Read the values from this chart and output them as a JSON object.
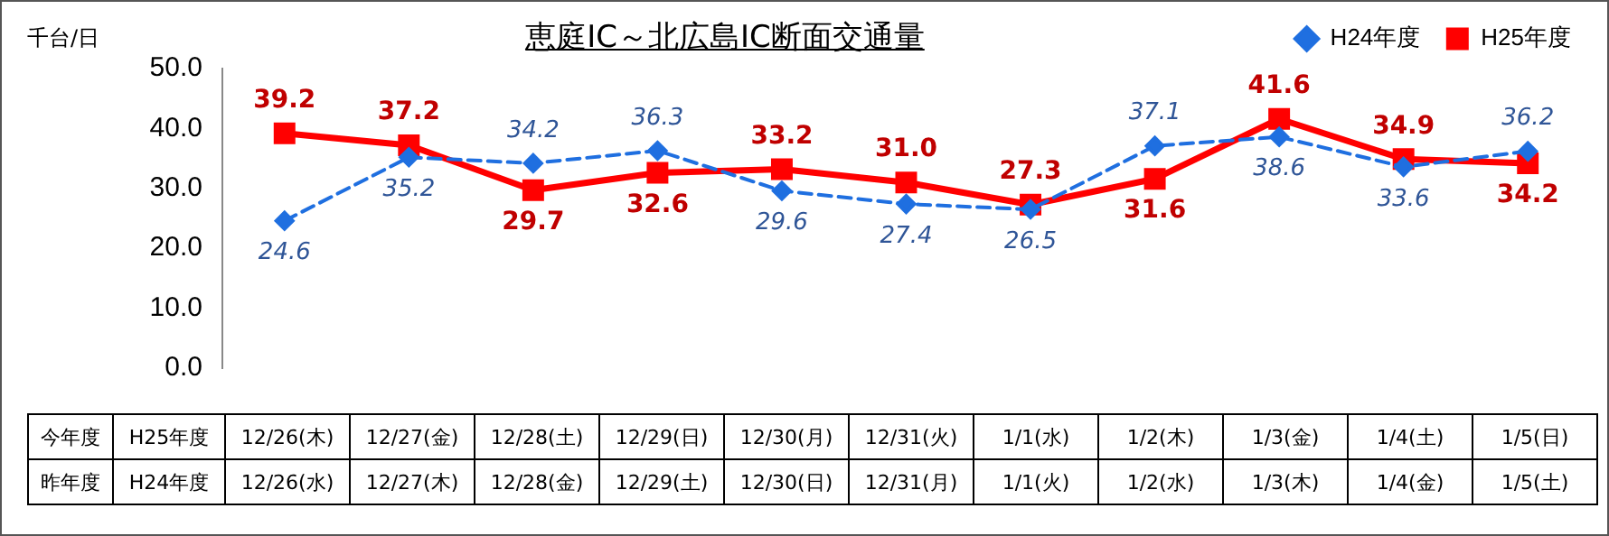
{
  "chart_data": {
    "type": "line",
    "title": "恵庭IC～北広島IC断面交通量",
    "ylabel": "千台/日",
    "categories": [
      "12/26(木)",
      "12/27(金)",
      "12/28(土)",
      "12/29(日)",
      "12/30(月)",
      "12/31(火)",
      "1/1(水)",
      "1/2(木)",
      "1/3(金)",
      "1/4(土)",
      "1/5(日)"
    ],
    "series": [
      {
        "name": "H24年度",
        "color": "#1f6fe0",
        "marker": "diamond",
        "line_style": "dashed",
        "values": [
          24.6,
          35.2,
          34.2,
          36.3,
          29.6,
          27.4,
          26.5,
          37.1,
          38.6,
          33.6,
          36.2
        ],
        "value_labels": [
          "24.6",
          "35.2",
          "34.2",
          "36.3",
          "29.6",
          "27.4",
          "26.5",
          "37.1",
          "38.6",
          "33.6",
          "36.2"
        ]
      },
      {
        "name": "H25年度",
        "color": "#ff0000",
        "marker": "square",
        "line_style": "solid",
        "values": [
          39.2,
          37.2,
          29.7,
          32.6,
          33.2,
          31.0,
          27.3,
          31.6,
          41.6,
          34.9,
          34.2
        ],
        "value_labels": [
          "39.2",
          "37.2",
          "29.7",
          "32.6",
          "33.2",
          "31.0",
          "27.3",
          "31.6",
          "41.6",
          "34.9",
          "34.2"
        ]
      }
    ],
    "ylim": [
      0,
      50
    ],
    "yticks": [
      {
        "value": 0,
        "label": "0.0"
      },
      {
        "value": 10,
        "label": "10.0"
      },
      {
        "value": 20,
        "label": "20.0"
      },
      {
        "value": 30,
        "label": "30.0"
      },
      {
        "value": 40,
        "label": "40.0"
      },
      {
        "value": 50,
        "label": "50.0"
      }
    ],
    "grid": false,
    "legend": "top right",
    "annotations": [
      "今年度",
      "H25年度",
      "昨年度",
      "H24年度",
      "12/26(水)",
      "12/27(木)",
      "12/28(金)",
      "12/29(土)",
      "12/30(日)",
      "12/31(月)",
      "1/1(火)",
      "1/2(水)",
      "1/3(木)",
      "1/4(金)",
      "1/5(土)"
    ]
  }
}
